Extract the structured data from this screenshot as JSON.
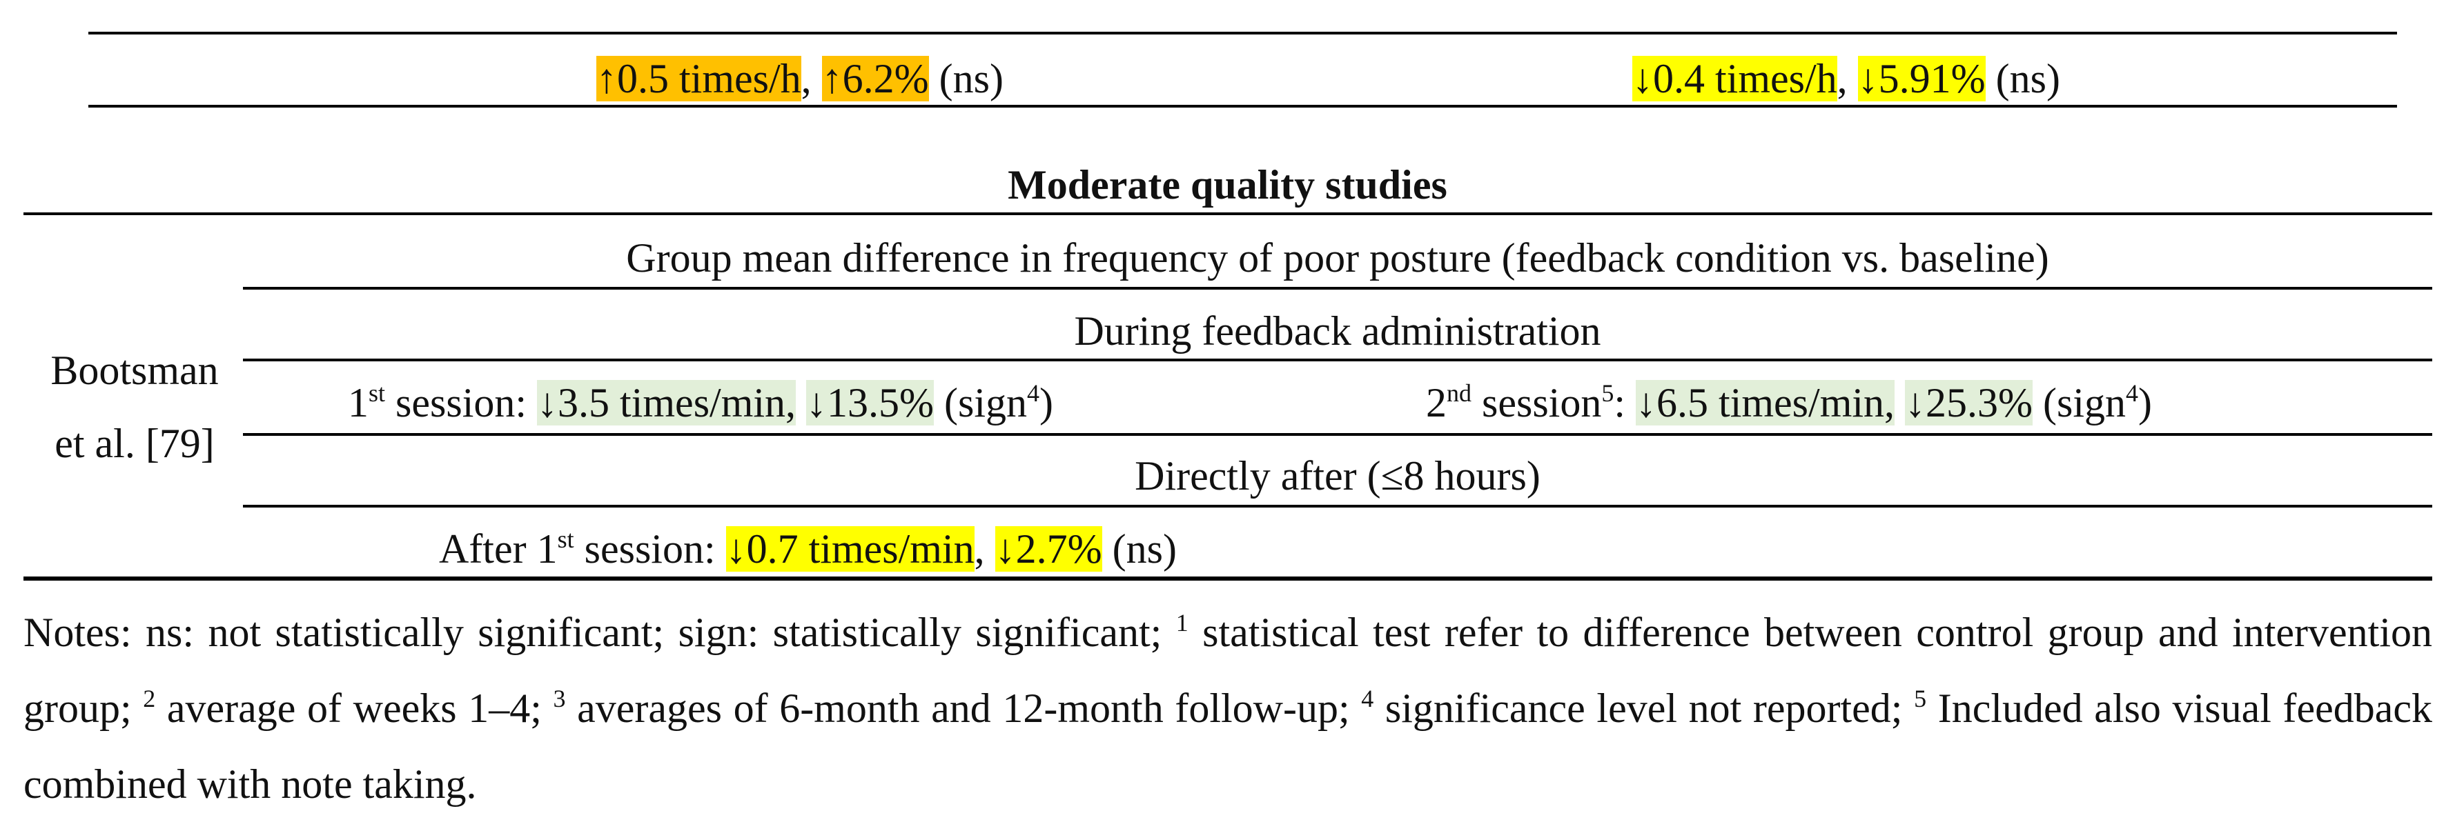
{
  "top_row": {
    "left": {
      "v1": "↑0.5 times/h",
      "sep": ",",
      "v2": "↑6.2%",
      "sig": "(ns)"
    },
    "right": {
      "v1": "↓0.4 times/h",
      "sep": ",",
      "v2": "↓5.91%",
      "sig": "(ns)"
    }
  },
  "section_title": "Moderate quality studies",
  "study": {
    "author_line1": "Bootsman",
    "author_line2": "et al. [79]",
    "outcome_header": "Group mean difference in frequency of poor posture (feedback condition vs. baseline)",
    "during_header": "During feedback administration",
    "session1": {
      "label_prefix": "1",
      "label_sup": "st",
      "label_suffix": " session:",
      "v1": "↓3.5 times/min,",
      "v2": "↓13.5%",
      "sig_text": "(sign",
      "sig_sup": "4",
      "sig_close": ")"
    },
    "session2": {
      "label_prefix": "2",
      "label_sup": "nd",
      "label_suffix": " session",
      "label_sup2": "5",
      "label_colon": ":",
      "v1": "↓6.5 times/min,",
      "v2": "↓25.3%",
      "sig_text": "(sign",
      "sig_sup": "4",
      "sig_close": ")"
    },
    "after_header": "Directly after (≤8 hours)",
    "after": {
      "label_prefix": "After 1",
      "label_sup": "st",
      "label_suffix": " session:",
      "v1": "↓0.7 times/min",
      "sep": ",",
      "v2": "↓2.7%",
      "sig": "(ns)"
    }
  },
  "notes": {
    "intro": "Notes: ns: not statistically significant; sign: statistically significant;",
    "n1_sup": "1",
    "n1_text": " statistical test refer to difference between control group and intervention group;",
    "n2_sup": "2",
    "n2_text": " average of weeks 1–4;",
    "n3_sup": "3",
    "n3_text": " averages of 6-month and 12-month follow-up;",
    "n4_sup": "4",
    "n4_text": " significance level not reported;",
    "n5_sup": "5",
    "n5_text": " Included also visual feedback combined with note taking."
  },
  "colors": {
    "orange_highlight": "#ffc000",
    "yellow_highlight": "#ffff00",
    "green_highlight": "#e2efd9"
  }
}
